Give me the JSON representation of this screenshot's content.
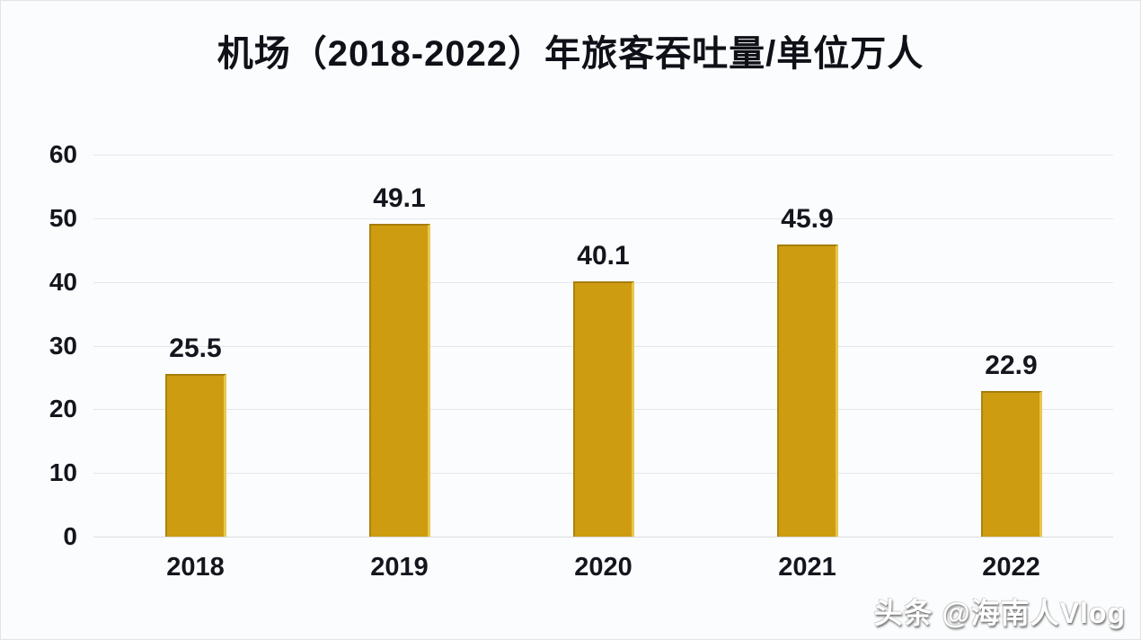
{
  "chart_data": {
    "type": "bar",
    "title": "机场（2018-2022）年旅客吞吐量/单位万人",
    "categories": [
      "2018",
      "2019",
      "2020",
      "2021",
      "2022"
    ],
    "values": [
      25.5,
      49.1,
      40.1,
      45.9,
      22.9
    ],
    "data_labels": [
      "25.5",
      "49.1",
      "40.1",
      "45.9",
      "22.9"
    ],
    "xlabel": "",
    "ylabel": "",
    "ylim": [
      0,
      60
    ],
    "yticks": [
      0,
      10,
      20,
      30,
      40,
      50,
      60
    ],
    "grid": "horizontal",
    "legend": "none",
    "bar_color": "#CE9C10",
    "bar_highlight_color": "#E9C64D",
    "gridline_color": "#E4E7EA",
    "label_color": "#15151E"
  },
  "watermark": {
    "text": "头条 @海南人Vlog"
  }
}
